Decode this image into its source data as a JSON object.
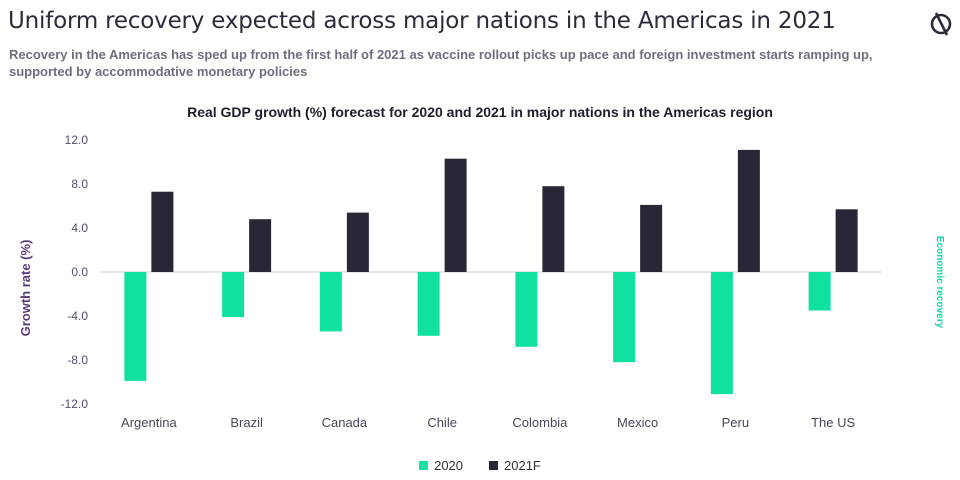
{
  "header": {
    "title": "Uniform recovery expected across major nations in the Americas in 2021",
    "subtitle": "Recovery in the Americas has sped up from the first half of 2021 as vaccine rollout picks up pace and foreign investment starts ramping up, supported by accommodative monetary policies",
    "logo_icon": "brand-logo-icon"
  },
  "colors": {
    "series_2020": "#10e0a0",
    "series_2021": "#2a2638",
    "ylabel": "#5a3a7a",
    "right_label": "#14d6a6",
    "tick_label": "#5a4a6e"
  },
  "chart_data": {
    "type": "bar",
    "title": "Real GDP growth (%) forecast for 2020 and 2021 in major nations in the Americas region",
    "xlabel": "",
    "ylabel": "Growth rate (%)",
    "right_label": "Economic recovery",
    "ylim": [
      -12,
      12
    ],
    "yticks": [
      "12.0",
      "8.0",
      "4.0",
      "0.0",
      "-4.0",
      "-8.0",
      "-12.0"
    ],
    "categories": [
      "Argentina",
      "Brazil",
      "Canada",
      "Chile",
      "Colombia",
      "Mexico",
      "Peru",
      "The US"
    ],
    "series": [
      {
        "name": "2020",
        "values": [
          -9.9,
          -4.1,
          -5.4,
          -5.8,
          -6.8,
          -8.2,
          -11.1,
          -3.5
        ]
      },
      {
        "name": "2021F",
        "values": [
          7.3,
          4.8,
          5.4,
          10.3,
          7.8,
          6.1,
          11.1,
          5.7
        ]
      }
    ],
    "legend_position": "bottom",
    "grid": false
  }
}
